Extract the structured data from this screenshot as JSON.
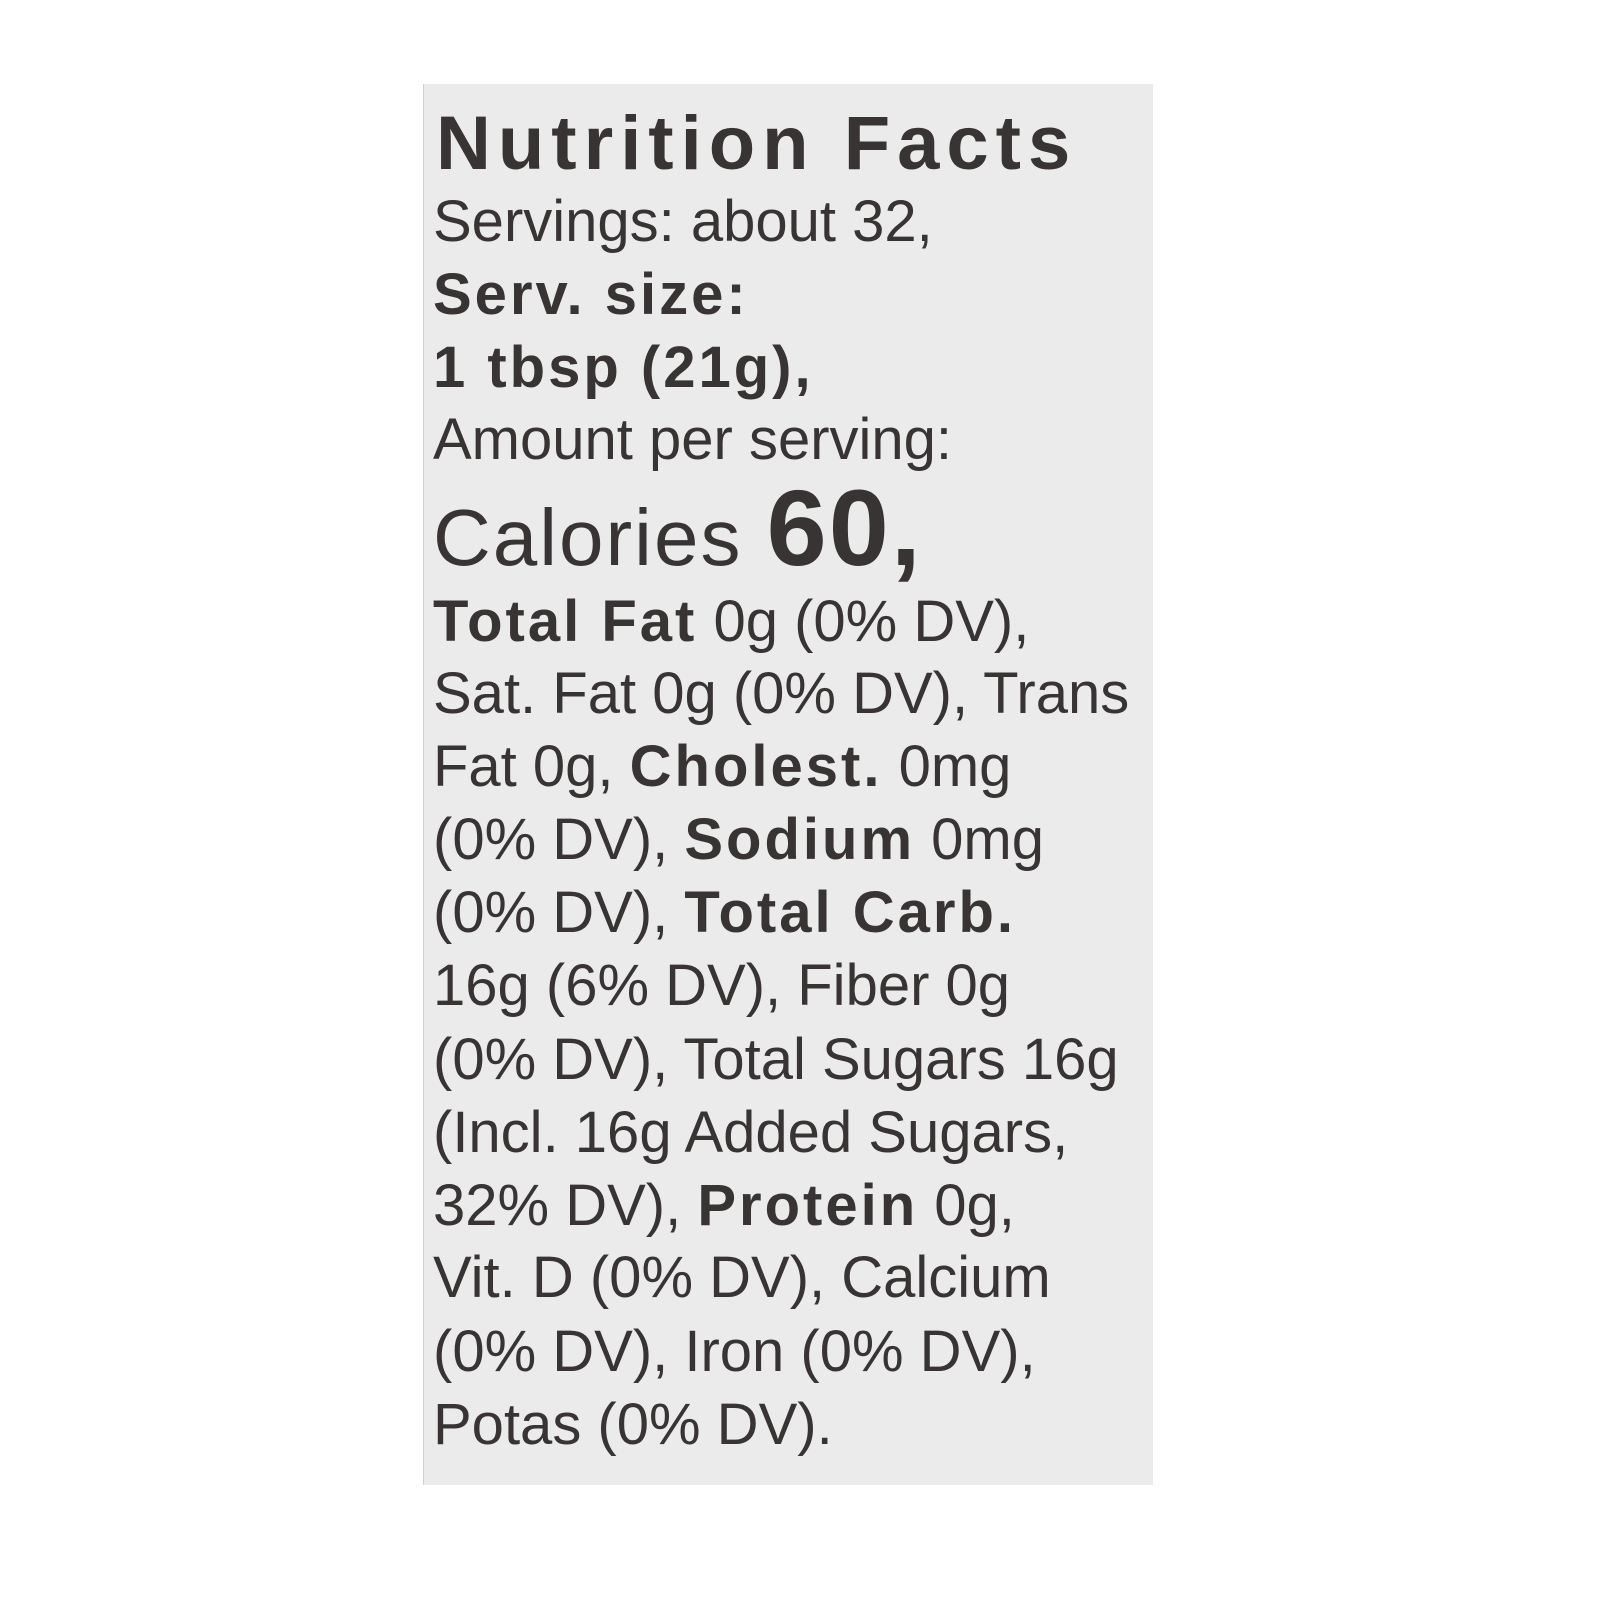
{
  "label": {
    "title": "Nutrition Facts",
    "lines": [
      [
        {
          "text": "Servings: about 32,",
          "bold": false
        }
      ],
      [
        {
          "text": "Serv. size:",
          "bold": true
        }
      ],
      [
        {
          "text": "1 tbsp (21g),",
          "bold": true
        }
      ],
      [
        {
          "text": "Amount per serving:",
          "bold": false
        }
      ],
      [
        {
          "text": "Calories ",
          "bold": false,
          "style": "cal-label"
        },
        {
          "text": "60,",
          "bold": true,
          "style": "cal-value"
        }
      ],
      [
        {
          "text": "Total Fat",
          "bold": true
        },
        {
          "text": " 0g (0% DV),",
          "bold": false
        }
      ],
      [
        {
          "text": "Sat. Fat 0g (0% DV), Trans",
          "bold": false
        }
      ],
      [
        {
          "text": "Fat 0g, ",
          "bold": false
        },
        {
          "text": "Cholest.",
          "bold": true
        },
        {
          "text": " 0mg",
          "bold": false
        }
      ],
      [
        {
          "text": "(0% DV), ",
          "bold": false
        },
        {
          "text": "Sodium",
          "bold": true
        },
        {
          "text": " 0mg",
          "bold": false
        }
      ],
      [
        {
          "text": "(0% DV), ",
          "bold": false
        },
        {
          "text": "Total Carb.",
          "bold": true
        }
      ],
      [
        {
          "text": "16g (6% DV), Fiber 0g",
          "bold": false
        }
      ],
      [
        {
          "text": "(0% DV), Total Sugars 16g",
          "bold": false
        }
      ],
      [
        {
          "text": "(Incl. 16g Added Sugars,",
          "bold": false
        }
      ],
      [
        {
          "text": "32% DV), ",
          "bold": false
        },
        {
          "text": "Protein",
          "bold": true
        },
        {
          "text": " 0g,",
          "bold": false
        }
      ],
      [
        {
          "text": "Vit. D (0% DV), Calcium",
          "bold": false
        }
      ],
      [
        {
          "text": "(0% DV), Iron (0% DV),",
          "bold": false
        }
      ],
      [
        {
          "text": "Potas (0% DV).",
          "bold": false
        }
      ]
    ]
  }
}
